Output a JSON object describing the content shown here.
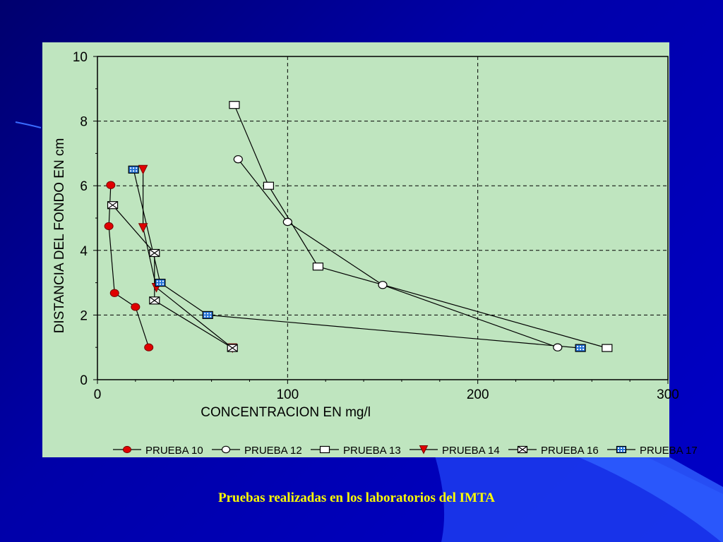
{
  "slide": {
    "caption": "Pruebas realizadas en los laboratorios del IMTA",
    "colors": {
      "background": "#0000a8",
      "panel": "#bfe5bf",
      "caption": "#ffff00",
      "series_marker_red": "#e00000",
      "series_marker_blue": "#1f6fd6"
    }
  },
  "chart_data": {
    "type": "scatter",
    "title": "",
    "xlabel": "CONCENTRACION EN mg/l",
    "ylabel": "DISTANCIA DEL FONDO EN cm",
    "xlim": [
      0,
      300
    ],
    "ylim": [
      0,
      10
    ],
    "xticks": [
      "0",
      "100",
      "200",
      "300"
    ],
    "yticks": [
      "0",
      "2",
      "4",
      "6",
      "8",
      "10"
    ],
    "grid": "dashed",
    "legend_position": "bottom",
    "series": [
      {
        "name": "PRUEBA 10",
        "marker": "filled-circle",
        "color": "#e00000",
        "points": [
          [
            7,
            6.02
          ],
          [
            6,
            4.75
          ],
          [
            9,
            2.68
          ],
          [
            20,
            2.25
          ],
          [
            27,
            1.0
          ]
        ]
      },
      {
        "name": "PRUEBA 12",
        "marker": "open-circle",
        "color": "#ffffff",
        "points": [
          [
            74,
            6.82
          ],
          [
            100,
            4.88
          ],
          [
            150,
            2.93
          ],
          [
            242,
            1.0
          ]
        ]
      },
      {
        "name": "PRUEBA 13",
        "marker": "open-square",
        "color": "#ffffff",
        "points": [
          [
            72,
            8.5
          ],
          [
            90,
            6.0
          ],
          [
            116,
            3.5
          ],
          [
            268,
            0.98
          ]
        ]
      },
      {
        "name": "PRUEBA 14",
        "marker": "filled-triangle-down",
        "color": "#e00000",
        "points": [
          [
            24,
            6.5
          ],
          [
            24,
            4.7
          ],
          [
            31,
            2.85
          ],
          [
            71,
            0.98
          ]
        ]
      },
      {
        "name": "PRUEBA 16",
        "marker": "crossed-square",
        "color": "#ffffff",
        "points": [
          [
            8,
            5.4
          ],
          [
            30,
            3.92
          ],
          [
            30,
            2.45
          ],
          [
            71,
            0.98
          ]
        ]
      },
      {
        "name": "PRUEBA 17",
        "marker": "dotted-square",
        "color": "#1f6fd6",
        "points": [
          [
            19,
            6.5
          ],
          [
            33,
            3.0
          ],
          [
            58,
            2.0
          ],
          [
            254,
            0.98
          ]
        ]
      }
    ]
  }
}
